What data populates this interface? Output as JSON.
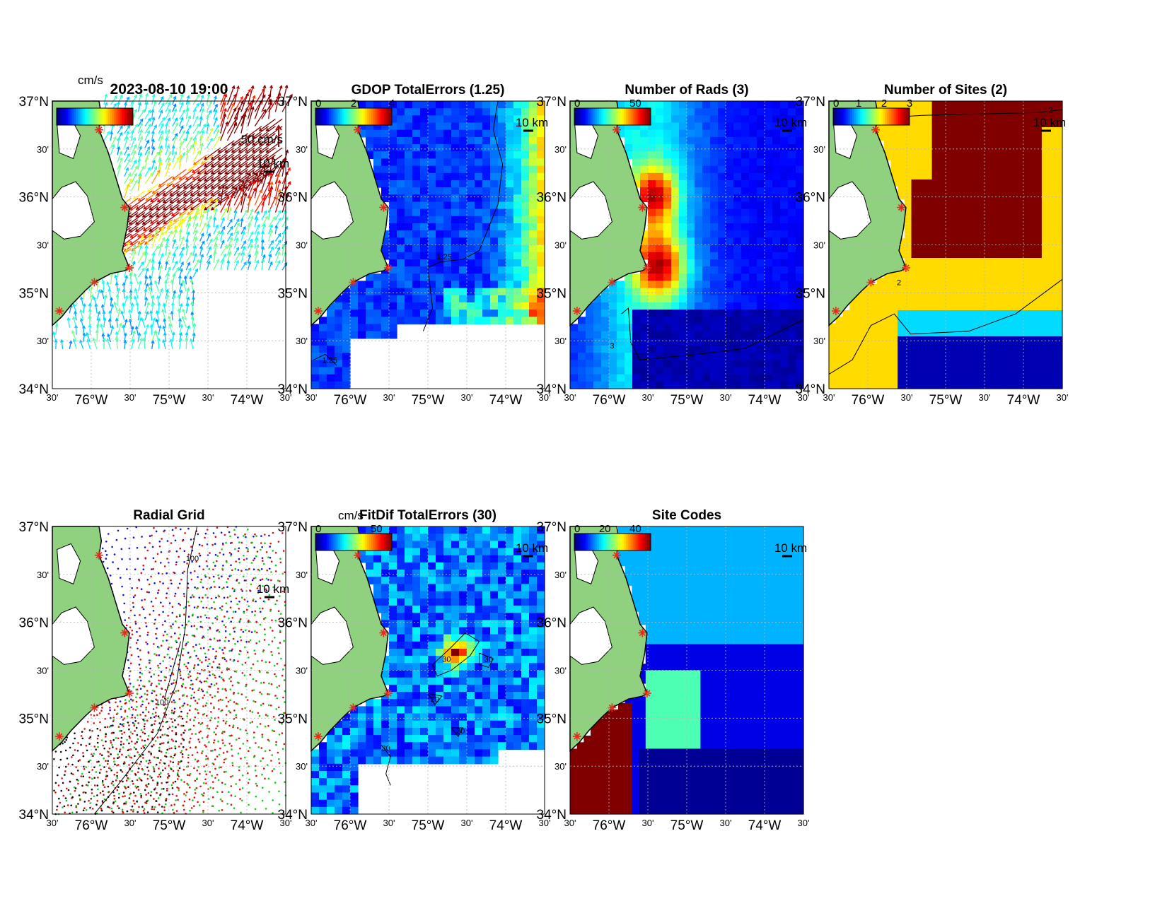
{
  "figure": {
    "lat_labels": [
      "37°N",
      "30'",
      "36°N",
      "30'",
      "35°N",
      "30'",
      "34°N"
    ],
    "lon_labels": [
      "30'",
      "76°W",
      "30'",
      "75°W",
      "30'",
      "74°W",
      "30'"
    ],
    "scale_label": "10 km",
    "site_marker_color": "#e8291c"
  },
  "panels": [
    {
      "id": "totals",
      "title": "2023-08-10 19:00",
      "cbar_unit": "cm/s",
      "cbar_ticks": [],
      "ref_vector_label": "50 cm/s",
      "kind": "vectors"
    },
    {
      "id": "gdop",
      "title": "GDOP TotalErrors (1.25)",
      "cbar_unit": "",
      "cbar_ticks": [
        "0",
        "2",
        "4"
      ],
      "contour_label": "1.25",
      "kind": "field"
    },
    {
      "id": "nrads",
      "title": "Number of Rads (3)",
      "cbar_unit": "",
      "cbar_ticks": [
        "0",
        "50"
      ],
      "contour_label": "3",
      "kind": "field"
    },
    {
      "id": "nsites",
      "title": "Number of Sites (2)",
      "cbar_unit": "",
      "cbar_ticks": [
        "0",
        "1",
        "2",
        "3"
      ],
      "contour_label": "2",
      "kind": "field"
    },
    {
      "id": "radgrid",
      "title": "Radial Grid",
      "cbar_unit": "",
      "cbar_ticks": [],
      "contour_label": "100",
      "kind": "radgrid"
    },
    {
      "id": "fitdif",
      "title": "FitDif TotalErrors (30)",
      "cbar_unit": "cm/s",
      "cbar_ticks": [
        "0",
        "50"
      ],
      "contour_label": "30",
      "kind": "field"
    },
    {
      "id": "sitecodes",
      "title": "Site Codes",
      "cbar_unit": "",
      "cbar_ticks": [
        "0",
        "20",
        "40"
      ],
      "kind": "field"
    }
  ],
  "chart_data": [
    {
      "type": "heatmap",
      "panel": "2023-08-10 19:00",
      "variable": "total surface current vectors",
      "units": "cm/s",
      "reference_vector": 50,
      "lat_range": [
        34,
        37
      ],
      "lon_range": [
        -76.5,
        -73.5
      ],
      "grid": true
    },
    {
      "type": "heatmap",
      "panel": "GDOP TotalErrors (1.25)",
      "clim": [
        0,
        4
      ],
      "contour": 1.25,
      "lat_range": [
        34,
        37
      ],
      "lon_range": [
        -76.5,
        -73.5
      ],
      "grid": true
    },
    {
      "type": "heatmap",
      "panel": "Number of Rads (3)",
      "clim": [
        0,
        50
      ],
      "contour": 3,
      "lat_range": [
        34,
        37
      ],
      "lon_range": [
        -76.5,
        -73.5
      ],
      "grid": true
    },
    {
      "type": "heatmap",
      "panel": "Number of Sites (2)",
      "clim": [
        0,
        3
      ],
      "contour": 2,
      "lat_range": [
        34,
        37
      ],
      "lon_range": [
        -76.5,
        -73.5
      ],
      "grid": true
    },
    {
      "type": "scatter",
      "panel": "Radial Grid",
      "contour": 100,
      "lat_range": [
        34,
        37
      ],
      "lon_range": [
        -76.5,
        -73.5
      ],
      "grid": true
    },
    {
      "type": "heatmap",
      "panel": "FitDif TotalErrors (30)",
      "units": "cm/s",
      "clim": [
        0,
        50
      ],
      "contour": 30,
      "lat_range": [
        34,
        37
      ],
      "lon_range": [
        -76.5,
        -73.5
      ],
      "grid": true
    },
    {
      "type": "heatmap",
      "panel": "Site Codes",
      "clim": [
        0,
        40
      ],
      "lat_range": [
        34,
        37
      ],
      "lon_range": [
        -76.5,
        -73.5
      ],
      "grid": true
    }
  ]
}
